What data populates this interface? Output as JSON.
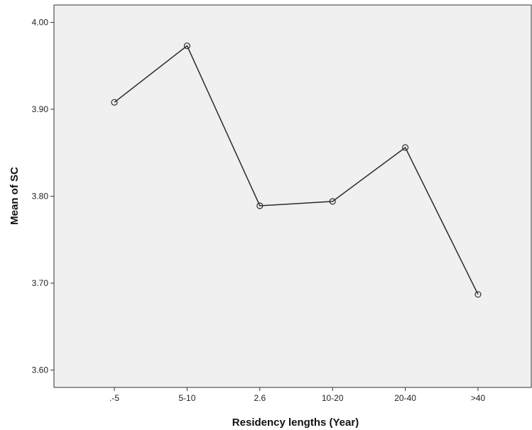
{
  "chart_data": {
    "type": "line",
    "title": "",
    "xlabel": "Residency lengths (Year)",
    "ylabel": "Mean of SC",
    "categories": [
      ".-5",
      "5-10",
      "2.6",
      "10-20",
      "20-40",
      ">40"
    ],
    "values": [
      3.908,
      3.973,
      3.789,
      3.794,
      3.856,
      3.687
    ],
    "ylim": [
      3.58,
      4.02
    ],
    "yticks": [
      "3.60",
      "3.70",
      "3.80",
      "3.90",
      "4.00"
    ],
    "ytick_values": [
      3.6,
      3.7,
      3.8,
      3.9,
      4.0
    ],
    "grid": false,
    "markers": "open-circle",
    "colors": {
      "plot_background": "#f0f0f0",
      "line": "#2b2b2b",
      "axis": "#333333"
    }
  }
}
